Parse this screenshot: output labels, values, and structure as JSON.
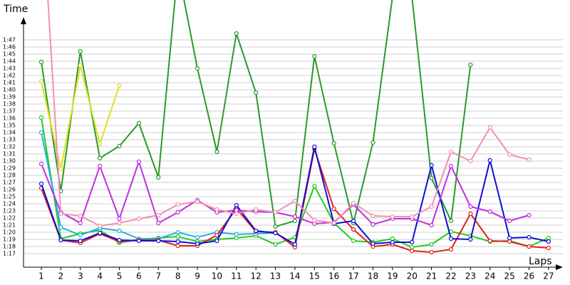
{
  "chart_data": {
    "type": "line",
    "y_label": "Time",
    "x_label": "Laps",
    "categories": [
      "1",
      "2",
      "3",
      "4",
      "5",
      "6",
      "7",
      "8",
      "9",
      "10",
      "11",
      "12",
      "13",
      "14",
      "15",
      "16",
      "17",
      "18",
      "19",
      "20",
      "21",
      "22",
      "23",
      "24",
      "25",
      "26",
      "27"
    ],
    "ylim": [
      75.1,
      109.6
    ],
    "yticks": [
      {
        "value": 77,
        "label": "1:17"
      },
      {
        "value": 78,
        "label": "1:18"
      },
      {
        "value": 79,
        "label": "1:19"
      },
      {
        "value": 80,
        "label": "1:20"
      },
      {
        "value": 81,
        "label": "1:21"
      },
      {
        "value": 82,
        "label": "1:22"
      },
      {
        "value": 83,
        "label": "1:23"
      },
      {
        "value": 84,
        "label": "1:24"
      },
      {
        "value": 85,
        "label": "1:25"
      },
      {
        "value": 86,
        "label": "1:26"
      },
      {
        "value": 87,
        "label": "1:27"
      },
      {
        "value": 88,
        "label": "1:28"
      },
      {
        "value": 89,
        "label": "1:29"
      },
      {
        "value": 90,
        "label": "1:30"
      },
      {
        "value": 91,
        "label": "1:31"
      },
      {
        "value": 92,
        "label": "1:32"
      },
      {
        "value": 93,
        "label": "1:33"
      },
      {
        "value": 94,
        "label": "1:34"
      },
      {
        "value": 95,
        "label": "1:35"
      },
      {
        "value": 96,
        "label": "1:36"
      },
      {
        "value": 97,
        "label": "1:37"
      },
      {
        "value": 98,
        "label": "1:38"
      },
      {
        "value": 99,
        "label": "1:39"
      },
      {
        "value": 100,
        "label": "1:40"
      },
      {
        "value": 101,
        "label": "1:41"
      },
      {
        "value": 102,
        "label": "1:42"
      },
      {
        "value": 103,
        "label": "1:43"
      },
      {
        "value": 104,
        "label": "1:44"
      },
      {
        "value": 105,
        "label": "1:45"
      },
      {
        "value": 106,
        "label": "1:46"
      },
      {
        "value": 107,
        "label": "1:47"
      }
    ],
    "grid": true,
    "series": [
      {
        "color": "#2a9a2a",
        "values": [
          103.9,
          85.8,
          105.4,
          90.4,
          92.1,
          95.3,
          87.7,
          117,
          103,
          91.3,
          107.9,
          99.6,
          80.8,
          81.6,
          104.7,
          92.5,
          81.3,
          92.6,
          113,
          113,
          87.6,
          81.6,
          103.5,
          null,
          null,
          null,
          null
        ]
      },
      {
        "color": "#e0e020",
        "values": [
          101.2,
          88.9,
          103.4,
          92.4,
          100.6,
          null,
          null,
          null,
          null,
          null,
          null,
          null,
          null,
          null,
          null,
          null,
          null,
          null,
          null,
          null,
          null,
          null,
          null,
          null,
          null,
          null,
          null
        ]
      },
      {
        "color": "#22cc22",
        "values": [
          96.1,
          79.1,
          79.8,
          80.3,
          78.5,
          79,
          79.2,
          79.4,
          78.7,
          79,
          79.2,
          79.5,
          78.3,
          79.3,
          86.5,
          81.3,
          78.8,
          78.6,
          79.1,
          77.9,
          78.3,
          80.1,
          79.5,
          78.7,
          78.8,
          78,
          79.2
        ]
      },
      {
        "color": "#20b0e0",
        "values": [
          94,
          80.7,
          79.6,
          80.6,
          80.2,
          79.1,
          79.1,
          80,
          79.3,
          80,
          79.7,
          79.8,
          79.9,
          null,
          null,
          null,
          null,
          null,
          null,
          null,
          null,
          null,
          null,
          null,
          null,
          null,
          null
        ]
      },
      {
        "color": "#e02020",
        "values": [
          86.2,
          78.9,
          78.5,
          79.8,
          78.7,
          78.9,
          78.9,
          78.1,
          78.1,
          79.6,
          83.3,
          80.1,
          80,
          77.9,
          91.7,
          83.3,
          80.4,
          78,
          78.3,
          77.4,
          77.2,
          77.6,
          82.6,
          78.8,
          78.7,
          78,
          77.8
        ]
      },
      {
        "color": "#1010d0",
        "values": [
          86.8,
          78.9,
          78.8,
          79.9,
          78.9,
          78.8,
          78.8,
          78.7,
          78.4,
          78.8,
          83.8,
          80.2,
          79.9,
          78.3,
          92,
          81.2,
          81.6,
          78.4,
          78.6,
          78.6,
          89.4,
          79.1,
          79,
          90.1,
          79.2,
          79.3,
          78.7
        ]
      },
      {
        "color": "#c030e0",
        "values": [
          89.6,
          82.8,
          81.3,
          89.3,
          81.9,
          89.9,
          81.3,
          82.8,
          84.5,
          82.8,
          83.1,
          82.9,
          82.8,
          82.2,
          81.2,
          81.4,
          83.9,
          81.1,
          81.9,
          81.9,
          81,
          89.3,
          83.6,
          82.9,
          81.6,
          82.4,
          null
        ]
      },
      {
        "color": "#f090b0",
        "values": [
          128,
          82.6,
          82.3,
          80.9,
          81.3,
          81.9,
          82.4,
          83.9,
          84.3,
          83.2,
          82.6,
          83.2,
          82.8,
          84.4,
          81.7,
          81.3,
          84.1,
          82.3,
          82.2,
          82.2,
          83.6,
          91.3,
          90,
          94.7,
          90.9,
          90.2,
          null
        ]
      }
    ]
  }
}
